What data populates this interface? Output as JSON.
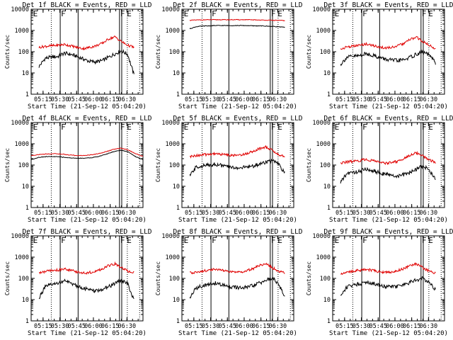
{
  "chart_data": [
    {
      "type": "line",
      "title": "Det 1f BLACK = Events, RED = LLD",
      "xlabel": "Start Time (21-Sep-12 05:04:20)",
      "ylabel": "Counts/sec",
      "yscale": "log",
      "ylim": [
        1,
        10000
      ],
      "yticks": [
        "1",
        "10",
        "100",
        "1000",
        "10000"
      ],
      "xticks": [
        "05:15",
        "05:30",
        "05:45",
        "06:00",
        "06:15",
        "06:30"
      ],
      "xlim_min_from_start": [
        0,
        100
      ],
      "x_range_min_from_start": [
        7,
        92
      ],
      "solid_lines_min": [
        26,
        42,
        79,
        81
      ],
      "dotted_lines_min": [
        18,
        86,
        97
      ],
      "markers": [
        {
          "label": "E",
          "t": 1
        },
        {
          "label": "F",
          "t": 26
        },
        {
          "label": "F",
          "t": 79
        },
        {
          "label": "E",
          "t": 85
        }
      ],
      "series": [
        {
          "name": "BLACK = Events",
          "color": "#000000",
          "values": [
            20,
            50,
            55,
            60,
            85,
            75,
            60,
            45,
            35,
            33,
            38,
            55,
            80,
            110,
            75,
            8
          ]
        },
        {
          "name": "RED = LLD",
          "color": "#e00000",
          "values": [
            160,
            180,
            190,
            200,
            220,
            190,
            160,
            140,
            160,
            190,
            250,
            400,
            500,
            300,
            200,
            160
          ]
        }
      ]
    },
    {
      "type": "line",
      "title": "Det 2f BLACK = Events, RED = LLD",
      "xlabel": "Start Time (21-Sep-12 05:04:20)",
      "ylabel": "Counts/sec",
      "yscale": "log",
      "ylim": [
        1,
        10000
      ],
      "yticks": [
        "1",
        "10",
        "100",
        "1000",
        "10000"
      ],
      "xticks": [
        "05:15",
        "05:30",
        "05:45",
        "06:00",
        "06:15",
        "06:30"
      ],
      "xlim_min_from_start": [
        0,
        100
      ],
      "x_range_min_from_start": [
        7,
        92
      ],
      "solid_lines_min": [
        26,
        42,
        79,
        81
      ],
      "dotted_lines_min": [
        18,
        86,
        97
      ],
      "markers": [
        {
          "label": "E",
          "t": 1
        },
        {
          "label": "F",
          "t": 26
        },
        {
          "label": "F",
          "t": 79
        },
        {
          "label": "E",
          "t": 85
        }
      ],
      "series": [
        {
          "name": "BLACK = Events",
          "color": "#000000",
          "values": [
            1200,
            1500,
            1600,
            1650,
            1700,
            1700,
            1700,
            1700,
            1700,
            1700,
            1650,
            1650,
            1600,
            1550,
            1500,
            1400
          ]
        },
        {
          "name": "RED = LLD",
          "color": "#e00000",
          "values": [
            3000,
            3100,
            3150,
            3200,
            3200,
            3200,
            3200,
            3200,
            3200,
            3200,
            3150,
            3100,
            3050,
            3000,
            3000,
            2900
          ]
        }
      ]
    },
    {
      "type": "line",
      "title": "Det 3f BLACK = Events, RED = LLD",
      "xlabel": "Start Time (21-Sep-12 05:04:20)",
      "ylabel": "Counts/sec",
      "yscale": "log",
      "ylim": [
        1,
        10000
      ],
      "yticks": [
        "1",
        "10",
        "100",
        "1000",
        "10000"
      ],
      "xticks": [
        "05:15",
        "05:30",
        "05:45",
        "06:00",
        "06:15",
        "06:30"
      ],
      "xlim_min_from_start": [
        0,
        100
      ],
      "x_range_min_from_start": [
        7,
        92
      ],
      "solid_lines_min": [
        26,
        42,
        79,
        81
      ],
      "dotted_lines_min": [
        18,
        86,
        97
      ],
      "markers": [
        {
          "label": "E",
          "t": 1
        },
        {
          "label": "F",
          "t": 26
        },
        {
          "label": "F",
          "t": 79
        },
        {
          "label": "E",
          "t": 85
        }
      ],
      "series": [
        {
          "name": "BLACK = Events",
          "color": "#000000",
          "values": [
            25,
            55,
            60,
            65,
            80,
            70,
            55,
            45,
            40,
            38,
            42,
            55,
            75,
            100,
            70,
            30
          ]
        },
        {
          "name": "RED = LLD",
          "color": "#e00000",
          "values": [
            130,
            170,
            180,
            200,
            230,
            200,
            170,
            150,
            160,
            190,
            240,
            380,
            480,
            300,
            200,
            140
          ]
        }
      ]
    },
    {
      "type": "line",
      "title": "Det 4f BLACK = Events, RED = LLD",
      "xlabel": "Start Time (21-Sep-12 05:04:20)",
      "ylabel": "Counts/sec",
      "yscale": "log",
      "ylim": [
        1,
        10000
      ],
      "yticks": [
        "1",
        "10",
        "100",
        "1000",
        "10000"
      ],
      "xticks": [
        "05:15",
        "05:30",
        "05:45",
        "06:00",
        "06:15",
        "06:30"
      ],
      "xlim_min_from_start": [
        0,
        100
      ],
      "x_range_min_from_start": [
        0,
        100
      ],
      "solid_lines_min": [
        26,
        42,
        79,
        81
      ],
      "dotted_lines_min": [
        18,
        86,
        97
      ],
      "markers": [
        {
          "label": "E",
          "t": 1
        },
        {
          "label": "F",
          "t": 26
        },
        {
          "label": "F",
          "t": 79
        },
        {
          "label": "E",
          "t": 85
        }
      ],
      "series": [
        {
          "name": "BLACK = Events",
          "color": "#000000",
          "values": [
            180,
            230,
            250,
            250,
            240,
            220,
            210,
            210,
            220,
            250,
            320,
            420,
            500,
            420,
            250,
            180
          ]
        },
        {
          "name": "RED = LLD",
          "color": "#e00000",
          "values": [
            280,
            310,
            330,
            340,
            330,
            300,
            280,
            280,
            300,
            340,
            420,
            540,
            620,
            520,
            340,
            260
          ]
        }
      ]
    },
    {
      "type": "line",
      "title": "Det 5f BLACK = Events, RED = LLD",
      "xlabel": "Start Time (21-Sep-12 05:04:20)",
      "ylabel": "Counts/sec",
      "yscale": "log",
      "ylim": [
        1,
        10000
      ],
      "yticks": [
        "1",
        "10",
        "100",
        "1000",
        "10000"
      ],
      "xticks": [
        "05:15",
        "05:30",
        "05:45",
        "06:00",
        "06:15",
        "06:30"
      ],
      "xlim_min_from_start": [
        0,
        100
      ],
      "x_range_min_from_start": [
        7,
        92
      ],
      "solid_lines_min": [
        26,
        42,
        79,
        81
      ],
      "dotted_lines_min": [
        18,
        86,
        97
      ],
      "markers": [
        {
          "label": "E",
          "t": 1
        },
        {
          "label": "F",
          "t": 26
        },
        {
          "label": "F",
          "t": 79
        },
        {
          "label": "E",
          "t": 85
        }
      ],
      "series": [
        {
          "name": "BLACK = Events",
          "color": "#000000",
          "values": [
            30,
            80,
            90,
            100,
            110,
            95,
            85,
            75,
            75,
            80,
            90,
            110,
            140,
            160,
            110,
            40
          ]
        },
        {
          "name": "RED = LLD",
          "color": "#e00000",
          "values": [
            240,
            280,
            300,
            320,
            350,
            320,
            300,
            280,
            300,
            350,
            450,
            600,
            700,
            500,
            300,
            260
          ]
        }
      ]
    },
    {
      "type": "line",
      "title": "Det 6f BLACK = Events, RED = LLD",
      "xlabel": "Start Time (21-Sep-12 05:04:20)",
      "ylabel": "Counts/sec",
      "yscale": "log",
      "ylim": [
        1,
        10000
      ],
      "yticks": [
        "1",
        "10",
        "100",
        "1000",
        "10000"
      ],
      "xticks": [
        "05:15",
        "05:30",
        "05:45",
        "06:00",
        "06:15",
        "06:30"
      ],
      "xlim_min_from_start": [
        0,
        100
      ],
      "x_range_min_from_start": [
        7,
        92
      ],
      "solid_lines_min": [
        26,
        42,
        79,
        81
      ],
      "dotted_lines_min": [
        18,
        86,
        97
      ],
      "markers": [
        {
          "label": "E",
          "t": 1
        },
        {
          "label": "F",
          "t": 26
        },
        {
          "label": "F",
          "t": 79
        },
        {
          "label": "E",
          "t": 85
        }
      ],
      "series": [
        {
          "name": "BLACK = Events",
          "color": "#000000",
          "values": [
            15,
            40,
            45,
            50,
            65,
            55,
            45,
            38,
            32,
            30,
            35,
            45,
            65,
            90,
            60,
            20
          ]
        },
        {
          "name": "RED = LLD",
          "color": "#e00000",
          "values": [
            120,
            140,
            150,
            160,
            190,
            160,
            140,
            120,
            130,
            150,
            200,
            300,
            380,
            260,
            180,
            130
          ]
        }
      ]
    },
    {
      "type": "line",
      "title": "Det 7f BLACK = Events, RED = LLD",
      "xlabel": "Start Time (21-Sep-12 05:04:20)",
      "ylabel": "Counts/sec",
      "yscale": "log",
      "ylim": [
        1,
        10000
      ],
      "yticks": [
        "1",
        "10",
        "100",
        "1000",
        "10000"
      ],
      "xticks": [
        "05:15",
        "05:30",
        "05:45",
        "06:00",
        "06:15",
        "06:30"
      ],
      "xlim_min_from_start": [
        0,
        100
      ],
      "x_range_min_from_start": [
        7,
        92
      ],
      "solid_lines_min": [
        26,
        42,
        79,
        81
      ],
      "dotted_lines_min": [
        18,
        86,
        97
      ],
      "markers": [
        {
          "label": "E",
          "t": 1
        },
        {
          "label": "F",
          "t": 26
        },
        {
          "label": "F",
          "t": 79
        },
        {
          "label": "E",
          "t": 85
        }
      ],
      "series": [
        {
          "name": "BLACK = Events",
          "color": "#000000",
          "values": [
            12,
            40,
            50,
            60,
            75,
            60,
            45,
            35,
            28,
            25,
            30,
            40,
            60,
            80,
            55,
            10
          ]
        },
        {
          "name": "RED = LLD",
          "color": "#e00000",
          "values": [
            180,
            210,
            230,
            250,
            280,
            240,
            200,
            180,
            190,
            220,
            280,
            400,
            480,
            320,
            220,
            180
          ]
        }
      ]
    },
    {
      "type": "line",
      "title": "Det 8f BLACK = Events, RED = LLD",
      "xlabel": "Start Time (21-Sep-12 05:04:20)",
      "ylabel": "Counts/sec",
      "yscale": "log",
      "ylim": [
        1,
        10000
      ],
      "yticks": [
        "1",
        "10",
        "100",
        "1000",
        "10000"
      ],
      "xticks": [
        "05:15",
        "05:30",
        "05:45",
        "06:00",
        "06:15",
        "06:30"
      ],
      "xlim_min_from_start": [
        0,
        100
      ],
      "x_range_min_from_start": [
        7,
        92
      ],
      "solid_lines_min": [
        26,
        42,
        79,
        81
      ],
      "dotted_lines_min": [
        18,
        86,
        97
      ],
      "markers": [
        {
          "label": "E",
          "t": 1
        },
        {
          "label": "F",
          "t": 26
        },
        {
          "label": "F",
          "t": 79
        },
        {
          "label": "E",
          "t": 85
        }
      ],
      "series": [
        {
          "name": "BLACK = Events",
          "color": "#000000",
          "values": [
            12,
            35,
            45,
            50,
            60,
            50,
            42,
            38,
            35,
            38,
            45,
            60,
            80,
            100,
            60,
            12
          ]
        },
        {
          "name": "RED = LLD",
          "color": "#e00000",
          "values": [
            180,
            200,
            220,
            240,
            270,
            240,
            210,
            190,
            200,
            230,
            290,
            400,
            480,
            320,
            220,
            180
          ]
        }
      ]
    },
    {
      "type": "line",
      "title": "Det 9f BLACK = Events, RED = LLD",
      "xlabel": "Start Time (21-Sep-12 05:04:20)",
      "ylabel": "Counts/sec",
      "yscale": "log",
      "ylim": [
        1,
        10000
      ],
      "yticks": [
        "1",
        "10",
        "100",
        "1000",
        "10000"
      ],
      "xticks": [
        "05:15",
        "05:30",
        "05:45",
        "06:00",
        "06:15",
        "06:30"
      ],
      "xlim_min_from_start": [
        0,
        100
      ],
      "x_range_min_from_start": [
        7,
        92
      ],
      "solid_lines_min": [
        26,
        42,
        79,
        81
      ],
      "dotted_lines_min": [
        18,
        86,
        97
      ],
      "markers": [
        {
          "label": "E",
          "t": 1
        },
        {
          "label": "F",
          "t": 26
        },
        {
          "label": "F",
          "t": 79
        },
        {
          "label": "E",
          "t": 85
        }
      ],
      "series": [
        {
          "name": "BLACK = Events",
          "color": "#000000",
          "values": [
            15,
            40,
            50,
            55,
            70,
            60,
            50,
            42,
            40,
            42,
            50,
            65,
            85,
            100,
            65,
            30
          ]
        },
        {
          "name": "RED = LLD",
          "color": "#e00000",
          "values": [
            170,
            200,
            220,
            240,
            270,
            240,
            210,
            190,
            200,
            230,
            290,
            400,
            480,
            320,
            220,
            170
          ]
        }
      ]
    }
  ]
}
